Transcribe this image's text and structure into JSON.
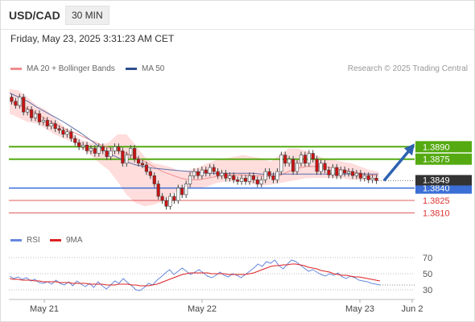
{
  "header": {
    "symbol": "USD/CAD",
    "timeframe": "30 MIN"
  },
  "timestamp": "Friday, May 23, 2025 3:31:23 AM CET",
  "legend": {
    "ma20_label": "MA 20 + Bollinger Bands",
    "ma50_label": "MA 50",
    "credit": "Research © 2025 Trading Central"
  },
  "rsi_legend": {
    "rsi_label": "RSI",
    "ma_label": "9MA"
  },
  "colors": {
    "up": "#ffffff",
    "down": "#cc1111",
    "candle_border": "#444444",
    "ma20": "#f08c8c",
    "band": "#ffcfcf",
    "ma50": "#5a6fa8",
    "green": "#55aa11",
    "blue": "#3b6fd6",
    "red": "#e05c5c",
    "arrow": "#2d62b0",
    "rsi": "#6688dd",
    "rsi_ma": "#dd2222",
    "price_box": "#333333"
  },
  "chart_data": [
    {
      "type": "candlestick",
      "ylim": [
        1.379,
        1.3975
      ],
      "x_labels": [
        "May 21",
        "May 22",
        "May 23",
        "Jun 2"
      ],
      "current_price": "1.3849",
      "levels": [
        {
          "value": 1.389,
          "label": "1.3890",
          "kind": "resistance"
        },
        {
          "value": 1.3875,
          "label": "1.3875",
          "kind": "resistance"
        },
        {
          "value": 1.384,
          "label": "1.3840",
          "kind": "pivot"
        },
        {
          "value": 1.3825,
          "label": "1.3825",
          "kind": "support"
        },
        {
          "value": 1.381,
          "label": "1.3810",
          "kind": "support"
        }
      ],
      "candles": [
        [
          1.395,
          1.3945
        ],
        [
          1.3945,
          1.394
        ],
        [
          1.394,
          1.395
        ],
        [
          1.395,
          1.3932
        ],
        [
          1.3932,
          1.3935
        ],
        [
          1.3935,
          1.3925
        ],
        [
          1.3925,
          1.393
        ],
        [
          1.393,
          1.392
        ],
        [
          1.392,
          1.3922
        ],
        [
          1.3922,
          1.3915
        ],
        [
          1.3915,
          1.3918
        ],
        [
          1.3918,
          1.3912
        ],
        [
          1.3912,
          1.391
        ],
        [
          1.391,
          1.3905
        ],
        [
          1.3905,
          1.3908
        ],
        [
          1.3908,
          1.39
        ],
        [
          1.39,
          1.3895
        ],
        [
          1.3895,
          1.389
        ],
        [
          1.389,
          1.3892
        ],
        [
          1.3892,
          1.3885
        ],
        [
          1.3885,
          1.3888
        ],
        [
          1.3888,
          1.3882
        ],
        [
          1.3882,
          1.389
        ],
        [
          1.389,
          1.3885
        ],
        [
          1.3885,
          1.3878
        ],
        [
          1.3878,
          1.3885
        ],
        [
          1.3885,
          1.389
        ],
        [
          1.389,
          1.3885
        ],
        [
          1.3885,
          1.387
        ],
        [
          1.387,
          1.388
        ],
        [
          1.388,
          1.3888
        ],
        [
          1.3888,
          1.3875
        ],
        [
          1.3875,
          1.387
        ],
        [
          1.387,
          1.3868
        ],
        [
          1.3868,
          1.386
        ],
        [
          1.386,
          1.3855
        ],
        [
          1.3855,
          1.3845
        ],
        [
          1.3845,
          1.383
        ],
        [
          1.383,
          1.3825
        ],
        [
          1.3825,
          1.3818
        ],
        [
          1.3818,
          1.383
        ],
        [
          1.383,
          1.3825
        ],
        [
          1.3825,
          1.384
        ],
        [
          1.384,
          1.3832
        ],
        [
          1.3832,
          1.3845
        ],
        [
          1.3845,
          1.3855
        ],
        [
          1.3855,
          1.386
        ],
        [
          1.386,
          1.3855
        ],
        [
          1.3855,
          1.3862
        ],
        [
          1.3862,
          1.3858
        ],
        [
          1.3858,
          1.3865
        ],
        [
          1.3865,
          1.386
        ],
        [
          1.386,
          1.3855
        ],
        [
          1.3855,
          1.3858
        ],
        [
          1.3858,
          1.3852
        ],
        [
          1.3852,
          1.3855
        ],
        [
          1.3855,
          1.385
        ],
        [
          1.385,
          1.3848
        ],
        [
          1.3848,
          1.3852
        ],
        [
          1.3852,
          1.3848
        ],
        [
          1.3848,
          1.3855
        ],
        [
          1.3855,
          1.385
        ],
        [
          1.385,
          1.3845
        ],
        [
          1.3845,
          1.385
        ],
        [
          1.385,
          1.386
        ],
        [
          1.386,
          1.3855
        ],
        [
          1.3855,
          1.385
        ],
        [
          1.385,
          1.386
        ],
        [
          1.386,
          1.388
        ],
        [
          1.388,
          1.387
        ],
        [
          1.387,
          1.3875
        ],
        [
          1.3875,
          1.386
        ],
        [
          1.386,
          1.387
        ],
        [
          1.387,
          1.388
        ],
        [
          1.388,
          1.387
        ],
        [
          1.387,
          1.3882
        ],
        [
          1.3882,
          1.3875
        ],
        [
          1.3875,
          1.386
        ],
        [
          1.386,
          1.387
        ],
        [
          1.387,
          1.3862
        ],
        [
          1.3862,
          1.3856
        ],
        [
          1.3856,
          1.3865
        ],
        [
          1.3865,
          1.3855
        ],
        [
          1.3855,
          1.3862
        ],
        [
          1.3862,
          1.3858
        ],
        [
          1.3858,
          1.386
        ],
        [
          1.386,
          1.3855
        ],
        [
          1.3855,
          1.3858
        ],
        [
          1.3858,
          1.3852
        ],
        [
          1.3852,
          1.3855
        ],
        [
          1.3855,
          1.385
        ],
        [
          1.385,
          1.3852
        ],
        [
          1.3852,
          1.3849
        ]
      ],
      "ma20": [
        1.3945,
        1.394,
        1.3936,
        1.393,
        1.3924,
        1.3918,
        1.3912,
        1.3908,
        1.3903,
        1.3898,
        1.3893,
        1.3889,
        1.3885,
        1.3882,
        1.3878,
        1.3872,
        1.3866,
        1.386,
        1.3856,
        1.3852,
        1.385,
        1.385,
        1.3852,
        1.3854,
        1.3856,
        1.3856,
        1.3856,
        1.3855,
        1.3855,
        1.3854,
        1.3855,
        1.386,
        1.3864,
        1.3866,
        1.3866,
        1.3866,
        1.3864,
        1.3862,
        1.386,
        1.3858,
        1.3856,
        1.3855
      ],
      "ma50": [
        1.3955,
        1.395,
        1.3945,
        1.3938,
        1.3932,
        1.3926,
        1.392,
        1.3913,
        1.3906,
        1.3898,
        1.389,
        1.3882,
        1.3877,
        1.3872,
        1.3868,
        1.3866,
        1.3864,
        1.3863,
        1.3862,
        1.3861,
        1.386,
        1.3859,
        1.3858,
        1.3858,
        1.3858,
        1.3858,
        1.3858,
        1.3858,
        1.3857,
        1.3857,
        1.3857,
        1.3857,
        1.3857,
        1.3857,
        1.3857,
        1.3857,
        1.3857,
        1.3857,
        1.3857,
        1.3857,
        1.3857,
        1.3857
      ],
      "band_upper": [
        1.396,
        1.3958,
        1.395,
        1.394,
        1.3935,
        1.3925,
        1.3915,
        1.3905,
        1.3898,
        1.3895,
        1.3892,
        1.3895,
        1.3905,
        1.3905,
        1.3892,
        1.3878,
        1.387,
        1.3868,
        1.3865,
        1.386,
        1.3862,
        1.3865,
        1.387,
        1.3874,
        1.3876,
        1.3878,
        1.388,
        1.3878,
        1.3876,
        1.3872,
        1.388,
        1.3888,
        1.3888,
        1.3885,
        1.388,
        1.3876,
        1.3874,
        1.3872,
        1.387,
        1.3866,
        1.3862,
        1.386
      ],
      "band_lower": [
        1.393,
        1.3925,
        1.392,
        1.3918,
        1.3912,
        1.3905,
        1.39,
        1.3896,
        1.3888,
        1.388,
        1.387,
        1.3862,
        1.3848,
        1.3832,
        1.3822,
        1.3818,
        1.382,
        1.3824,
        1.3832,
        1.3838,
        1.384,
        1.384,
        1.3842,
        1.3846,
        1.3848,
        1.3848,
        1.3848,
        1.3845,
        1.3843,
        1.3844,
        1.3846,
        1.3848,
        1.385,
        1.3852,
        1.3852,
        1.3852,
        1.3852,
        1.3852,
        1.385,
        1.385,
        1.385,
        1.385
      ]
    },
    {
      "type": "line",
      "ylim": [
        20,
        80
      ],
      "ticks": [
        "70",
        "50",
        "30"
      ],
      "series": [
        {
          "name": "RSI",
          "values": [
            47,
            44,
            46,
            43,
            45,
            41,
            43,
            39,
            38,
            40,
            37,
            42,
            38,
            36,
            40,
            35,
            41,
            37,
            34,
            38,
            33,
            40,
            35,
            31,
            36,
            41,
            38,
            44,
            39,
            35,
            30,
            29,
            33,
            38,
            36,
            42,
            46,
            51,
            55,
            49,
            53,
            57,
            53,
            49,
            52,
            55,
            51,
            47,
            45,
            48,
            52,
            48,
            46,
            50,
            48,
            45,
            49,
            53,
            57,
            62,
            59,
            65,
            63,
            67,
            60,
            56,
            62,
            67,
            65,
            61,
            57,
            53,
            55,
            52,
            49,
            47,
            50,
            48,
            51,
            46,
            44,
            47,
            45,
            42,
            41,
            40,
            38,
            37,
            36
          ]
        },
        {
          "name": "9MA",
          "values": [
            44,
            43,
            43,
            42,
            42,
            42,
            41,
            41,
            40,
            40,
            40,
            40,
            39,
            39,
            39,
            38,
            38,
            38,
            38,
            37,
            37,
            37,
            37,
            36,
            36,
            36,
            37,
            37,
            37,
            36,
            36,
            35,
            35,
            35,
            36,
            37,
            39,
            41,
            43,
            45,
            47,
            49,
            50,
            51,
            51,
            51,
            51,
            51,
            50,
            50,
            50,
            50,
            49,
            49,
            49,
            49,
            49,
            50,
            51,
            53,
            55,
            57,
            59,
            60,
            60,
            61,
            61,
            62,
            62,
            61,
            60,
            58,
            57,
            56,
            54,
            53,
            52,
            50,
            49,
            48,
            48,
            47,
            46,
            46,
            45,
            44,
            43,
            42,
            41
          ]
        }
      ]
    }
  ]
}
